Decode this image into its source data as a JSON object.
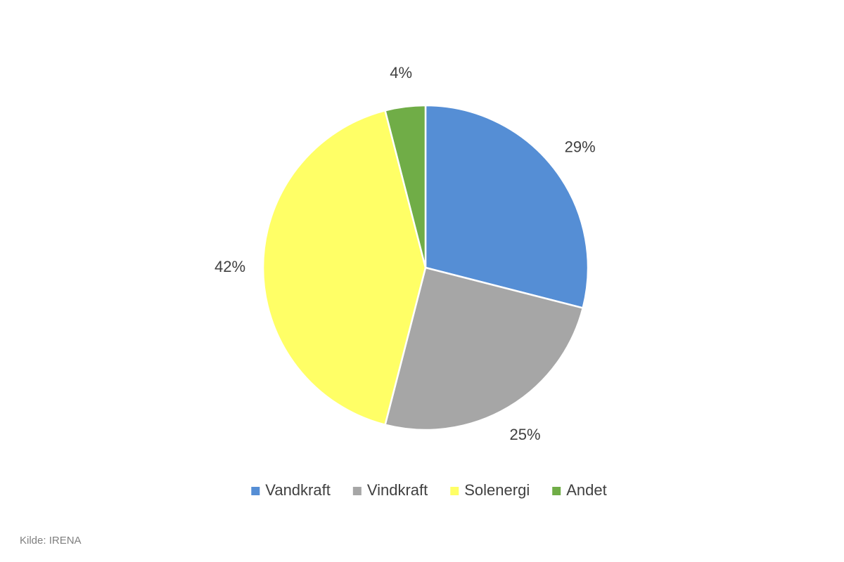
{
  "chart_data": {
    "type": "pie",
    "categories": [
      "Vandkraft",
      "Vindkraft",
      "Solenergi",
      "Andet"
    ],
    "values": [
      29,
      25,
      42,
      4
    ],
    "value_labels": [
      "29%",
      "25%",
      "42%",
      "4%"
    ],
    "colors": [
      "#558ed5",
      "#a6a6a6",
      "#ffff66",
      "#70ad47"
    ],
    "legend": "bottom",
    "source": "Kilde: IRENA"
  }
}
